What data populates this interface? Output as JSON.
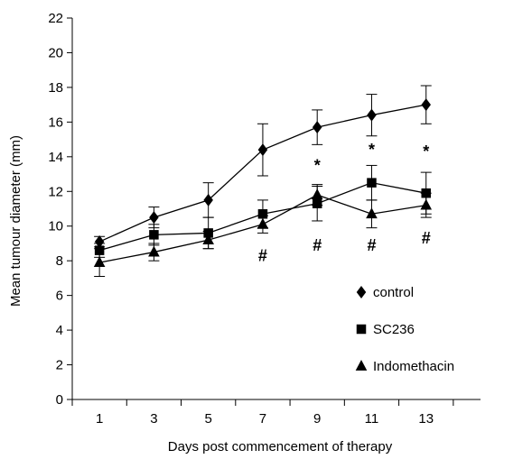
{
  "chart_data": {
    "type": "line",
    "title": "",
    "xlabel": "Days post commencement of therapy",
    "ylabel": "Mean tumour diameter (mm)",
    "x": [
      1,
      3,
      5,
      7,
      9,
      11,
      13
    ],
    "x_ticks": [
      1,
      3,
      5,
      7,
      9,
      11,
      13
    ],
    "xlim": [
      0,
      15
    ],
    "ylim": [
      0,
      22
    ],
    "y_ticks": [
      0,
      2,
      4,
      6,
      8,
      10,
      12,
      14,
      16,
      18,
      20,
      22
    ],
    "grid": false,
    "legend_position": "lower-right",
    "series": [
      {
        "name": "control",
        "marker": "diamond",
        "values": [
          9.1,
          10.5,
          11.5,
          14.4,
          15.7,
          16.4,
          17.0
        ],
        "error": [
          0.3,
          0.6,
          1.0,
          1.5,
          1.0,
          1.2,
          1.1
        ]
      },
      {
        "name": "SC236",
        "marker": "square",
        "values": [
          8.6,
          9.5,
          9.6,
          10.7,
          11.3,
          12.5,
          11.9
        ],
        "error": [
          0.4,
          0.6,
          0.9,
          0.8,
          1.0,
          1.0,
          1.2
        ]
      },
      {
        "name": "Indomethacin",
        "marker": "triangle",
        "values": [
          7.9,
          8.5,
          9.2,
          10.1,
          11.8,
          10.7,
          11.2
        ],
        "error": [
          0.8,
          0.5,
          0.5,
          0.5,
          0.6,
          0.8,
          0.7
        ]
      }
    ],
    "annotations": [
      {
        "text": "*",
        "x": 9,
        "y": 13.5
      },
      {
        "text": "*",
        "x": 11,
        "y": 14.4
      },
      {
        "text": "*",
        "x": 13,
        "y": 14.3
      },
      {
        "text": "#",
        "x": 7,
        "y": 8.3
      },
      {
        "text": "#",
        "x": 9,
        "y": 8.9
      },
      {
        "text": "#",
        "x": 11,
        "y": 8.9
      },
      {
        "text": "#",
        "x": 13,
        "y": 9.3
      }
    ]
  }
}
